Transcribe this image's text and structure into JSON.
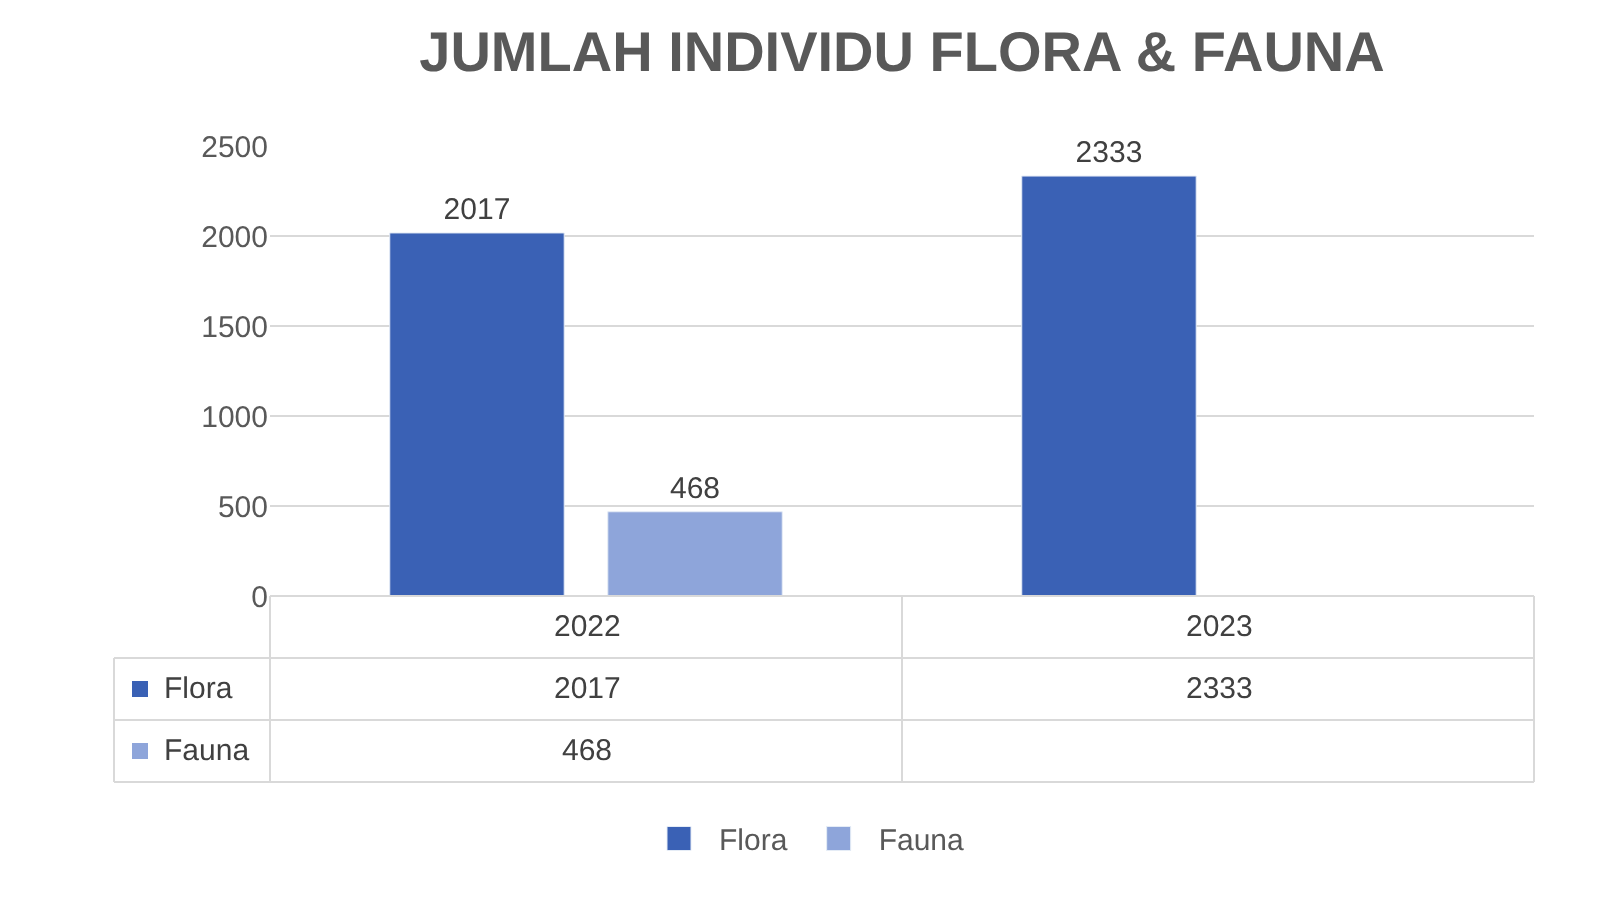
{
  "chart_data": {
    "type": "bar",
    "title": "JUMLAH INDIVIDU FLORA & FAUNA",
    "categories": [
      "2022",
      "2023"
    ],
    "series": [
      {
        "name": "Flora",
        "color": "#3a61b5",
        "values": [
          2017,
          2333
        ]
      },
      {
        "name": "Fauna",
        "color": "#8ea5da",
        "values": [
          468,
          null
        ]
      }
    ],
    "ylim": [
      0,
      2500
    ],
    "yticks": [
      0,
      500,
      1000,
      1500,
      2000,
      2500
    ],
    "grid": "y",
    "legend": "bottom",
    "data_labels": true,
    "annotations": [
      "2017",
      "2333",
      "468"
    ]
  }
}
